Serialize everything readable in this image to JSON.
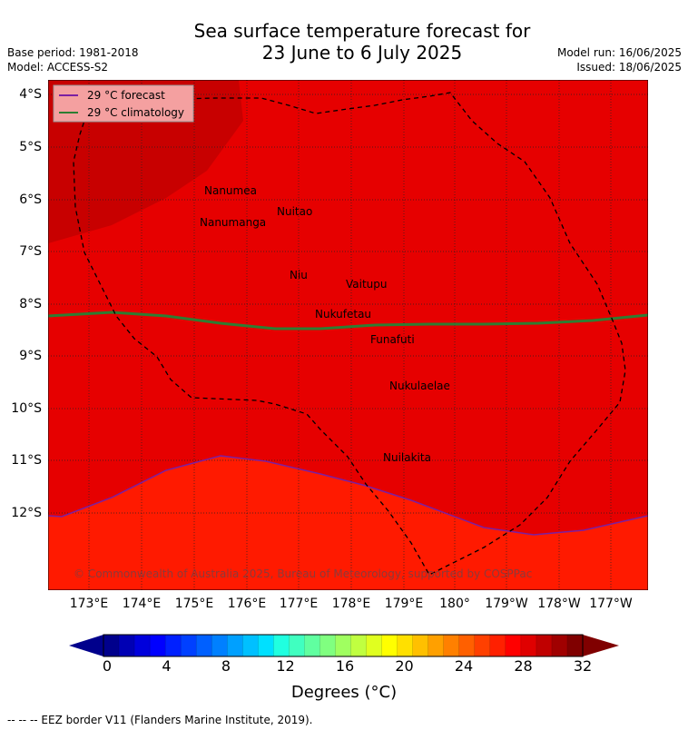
{
  "header": {
    "title_line1": "Sea surface temperature forecast for",
    "title_line2": "23 June to 6 July 2025",
    "base_period": "Base period: 1981-2018",
    "model": "Model: ACCESS-S2",
    "model_run": "Model run: 16/06/2025",
    "issued": "Issued: 18/06/2025"
  },
  "legend": {
    "forecast_label": "29 °C  forecast",
    "climatology_label": "29 °C  climatology",
    "forecast_color": "#7b1fa2",
    "climatology_color": "#2e7d32"
  },
  "map": {
    "lat_labels": [
      "4°S",
      "5°S",
      "6°S",
      "7°S",
      "8°S",
      "9°S",
      "10°S",
      "11°S",
      "12°S"
    ],
    "lon_labels": [
      "173°E",
      "174°E",
      "175°E",
      "176°E",
      "177°E",
      "178°E",
      "179°E",
      "180°",
      "179°W",
      "178°W",
      "177°W"
    ],
    "places": [
      "Nanumea",
      "Nuitao",
      "Nanumanga",
      "Niu",
      "Vaitupu",
      "Nukufetau",
      "Funafuti",
      "Nukulaelae",
      "Nuilakita"
    ],
    "copyright": "© Commonwealth of Australia 2025, Bureau of Meteorology, supported by COSPPac",
    "colors": {
      "above_30": "#c80000",
      "c29_30": "#e60000",
      "c28_29": "#ff1a00"
    }
  },
  "colorbar": {
    "ticks": [
      "0",
      "4",
      "8",
      "12",
      "16",
      "20",
      "24",
      "28",
      "32"
    ],
    "label": "Degrees (°C)",
    "colors": [
      "#00008c",
      "#0000b4",
      "#0000dc",
      "#0000ff",
      "#0020ff",
      "#0040ff",
      "#0060ff",
      "#0080ff",
      "#00a0ff",
      "#00c0ff",
      "#00e0ff",
      "#20ffe0",
      "#40ffc0",
      "#60ffa0",
      "#80ff80",
      "#a0ff60",
      "#c0ff40",
      "#e0ff20",
      "#ffff00",
      "#ffe000",
      "#ffc000",
      "#ffa000",
      "#ff8000",
      "#ff6000",
      "#ff4000",
      "#ff2000",
      "#ff0000",
      "#e00000",
      "#c00000",
      "#a00000",
      "#800000"
    ]
  },
  "footer": "--  --  -- EEZ border V11 (Flanders Marine Institute, 2019)."
}
